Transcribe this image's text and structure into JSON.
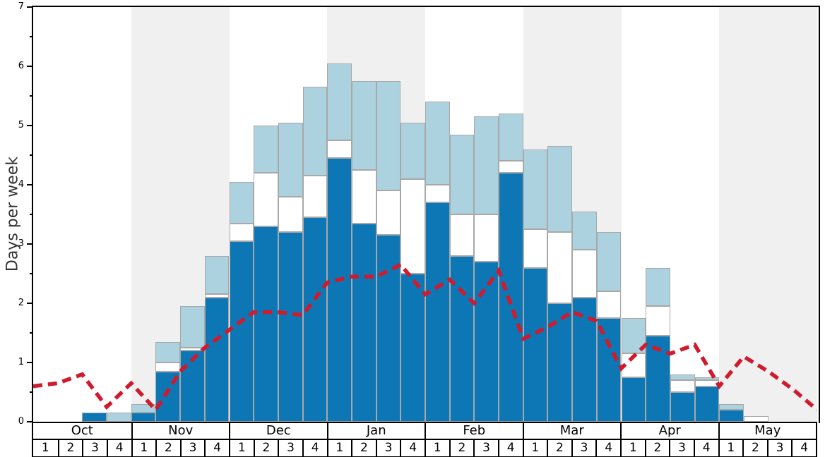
{
  "chart_data": {
    "type": "bar",
    "subtype": "stacked-weekly-bars-with-dashed-line",
    "title": "",
    "ylabel": "Days per week",
    "ylim": [
      0,
      7
    ],
    "yticks_major": [
      0,
      1,
      2,
      3,
      4,
      5,
      6,
      7
    ],
    "ytick_minor_step": 0.5,
    "grid": "off",
    "legend": "none visible",
    "months": [
      "Oct",
      "Nov",
      "Dec",
      "Jan",
      "Feb",
      "Mar",
      "Apr",
      "May"
    ],
    "shaded_months": [
      "Nov",
      "Jan",
      "Mar",
      "May"
    ],
    "week_labels": [
      "1",
      "2",
      "3",
      "4"
    ],
    "stack_order_bottom_to_top": [
      "dark_blue",
      "white",
      "light_blue"
    ],
    "bars_note": "tops are cumulative values in days-per-week: [top_of_dark_blue, top_of_white, top_of_light_blue(total)]",
    "bars": [
      {
        "month": "Oct",
        "week": 1,
        "tops": [
          0,
          0,
          0
        ]
      },
      {
        "month": "Oct",
        "week": 2,
        "tops": [
          0,
          0,
          0
        ]
      },
      {
        "month": "Oct",
        "week": 3,
        "tops": [
          0.15,
          0.15,
          0.15
        ]
      },
      {
        "month": "Oct",
        "week": 4,
        "tops": [
          0,
          0,
          0.15
        ]
      },
      {
        "month": "Nov",
        "week": 1,
        "tops": [
          0.15,
          0.15,
          0.3
        ]
      },
      {
        "month": "Nov",
        "week": 2,
        "tops": [
          0.85,
          1.0,
          1.35
        ]
      },
      {
        "month": "Nov",
        "week": 3,
        "tops": [
          1.2,
          1.25,
          1.95
        ]
      },
      {
        "month": "Nov",
        "week": 4,
        "tops": [
          2.1,
          2.15,
          2.8
        ]
      },
      {
        "month": "Dec",
        "week": 1,
        "tops": [
          3.05,
          3.35,
          4.05
        ]
      },
      {
        "month": "Dec",
        "week": 2,
        "tops": [
          3.3,
          4.2,
          5.0
        ]
      },
      {
        "month": "Dec",
        "week": 3,
        "tops": [
          3.2,
          3.8,
          5.05
        ]
      },
      {
        "month": "Dec",
        "week": 4,
        "tops": [
          3.45,
          4.15,
          5.65
        ]
      },
      {
        "month": "Jan",
        "week": 1,
        "tops": [
          4.45,
          4.75,
          6.05
        ]
      },
      {
        "month": "Jan",
        "week": 2,
        "tops": [
          3.35,
          4.25,
          5.75
        ]
      },
      {
        "month": "Jan",
        "week": 3,
        "tops": [
          3.15,
          3.9,
          5.75
        ]
      },
      {
        "month": "Jan",
        "week": 4,
        "tops": [
          2.5,
          4.1,
          5.05
        ]
      },
      {
        "month": "Feb",
        "week": 1,
        "tops": [
          3.7,
          4.0,
          5.4
        ]
      },
      {
        "month": "Feb",
        "week": 2,
        "tops": [
          2.8,
          3.5,
          4.85
        ]
      },
      {
        "month": "Feb",
        "week": 3,
        "tops": [
          2.7,
          3.5,
          5.15
        ]
      },
      {
        "month": "Feb",
        "week": 4,
        "tops": [
          4.2,
          4.4,
          5.2
        ]
      },
      {
        "month": "Mar",
        "week": 1,
        "tops": [
          2.6,
          3.25,
          4.6
        ]
      },
      {
        "month": "Mar",
        "week": 2,
        "tops": [
          2.0,
          3.2,
          4.65
        ]
      },
      {
        "month": "Mar",
        "week": 3,
        "tops": [
          2.1,
          2.9,
          3.55
        ]
      },
      {
        "month": "Mar",
        "week": 4,
        "tops": [
          1.75,
          2.2,
          3.2
        ]
      },
      {
        "month": "Apr",
        "week": 1,
        "tops": [
          0.75,
          1.15,
          1.75
        ]
      },
      {
        "month": "Apr",
        "week": 2,
        "tops": [
          1.45,
          1.95,
          2.6
        ]
      },
      {
        "month": "Apr",
        "week": 3,
        "tops": [
          0.5,
          0.7,
          0.8
        ]
      },
      {
        "month": "Apr",
        "week": 4,
        "tops": [
          0.6,
          0.7,
          0.75
        ]
      },
      {
        "month": "May",
        "week": 1,
        "tops": [
          0.2,
          0.2,
          0.3
        ]
      },
      {
        "month": "May",
        "week": 2,
        "tops": [
          0,
          0.1,
          0.1
        ]
      },
      {
        "month": "May",
        "week": 3,
        "tops": [
          0,
          0,
          0
        ]
      },
      {
        "month": "May",
        "week": 4,
        "tops": [
          0,
          0,
          0
        ]
      }
    ],
    "red_line": {
      "name": "red-dashed-line",
      "x_note": "33 vertices at week boundaries, from left plot edge (start of Oct wk1) to right plot edge (end of May wk4)",
      "values": [
        0.6,
        0.65,
        0.8,
        0.25,
        0.65,
        0.2,
        0.85,
        1.25,
        1.55,
        1.85,
        1.85,
        1.8,
        2.35,
        2.45,
        2.45,
        2.65,
        2.15,
        2.4,
        2.0,
        2.55,
        1.4,
        1.6,
        1.85,
        1.7,
        0.9,
        1.3,
        1.15,
        1.3,
        0.6,
        1.1,
        0.85,
        0.55,
        0.2
      ]
    },
    "colors": {
      "dark_blue": "#0d76b4",
      "white_segment": "#ffffff",
      "light_blue": "#add2df",
      "red_line": "#cf1b2e",
      "bar_border": "#a8a8a8",
      "shaded_band": "#f0f0f0",
      "axis": "#000000",
      "ylabel_text": "#333333"
    }
  }
}
